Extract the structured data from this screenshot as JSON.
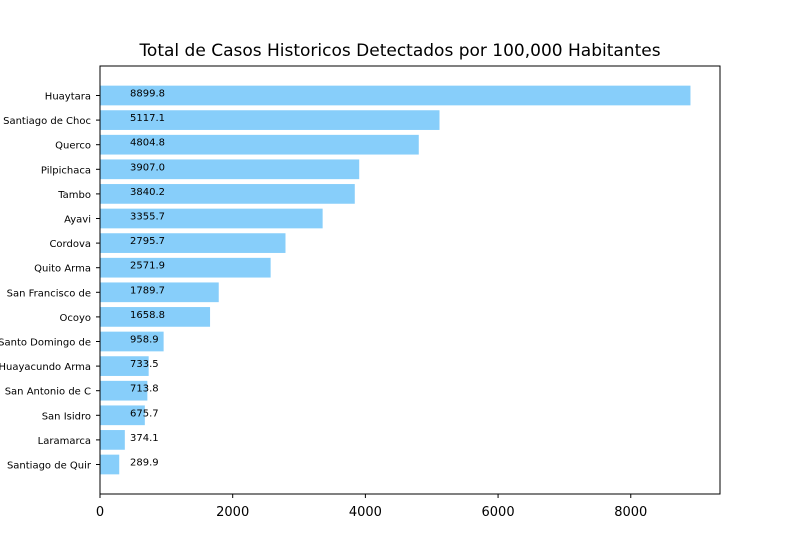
{
  "chart_data": {
    "type": "bar",
    "orientation": "horizontal",
    "title": "Total de Casos Historicos Detectados por 100,000 Habitantes",
    "xlabel": "",
    "ylabel": "",
    "xlim": [
      0,
      9345
    ],
    "xticks": [
      0,
      2000,
      4000,
      6000,
      8000
    ],
    "xtick_labels": [
      "0",
      "2000",
      "4000",
      "6000",
      "8000"
    ],
    "categories": [
      "Huaytara",
      "Santiago de Choc",
      "Querco",
      "Pilpichaca",
      "Tambo",
      "Ayavi",
      "Cordova",
      "Quito Arma",
      "San Francisco de",
      "Ocoyo",
      "Santo Domingo de",
      "Huayacundo Arma",
      "San Antonio de C",
      "San Isidro",
      "Laramarca",
      "Santiago de Quir"
    ],
    "values": [
      8899.8,
      5117.1,
      4804.8,
      3907.0,
      3840.2,
      3355.7,
      2795.7,
      2571.9,
      1789.7,
      1658.8,
      958.9,
      733.5,
      713.8,
      675.7,
      374.1,
      289.9
    ],
    "value_labels": [
      "8899.8",
      "5117.1",
      "4804.8",
      "3907.0",
      "3840.2",
      "3355.7",
      "2795.7",
      "2571.9",
      "1789.7",
      "1658.8",
      "958.9",
      "733.5",
      "713.8",
      "675.7",
      "374.1",
      "289.9"
    ],
    "bar_color": "#87cefa",
    "grid": false,
    "legend": "none"
  }
}
